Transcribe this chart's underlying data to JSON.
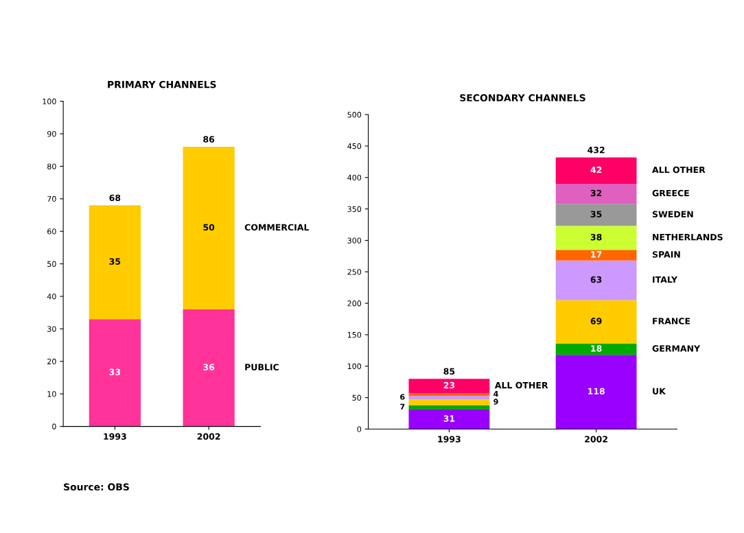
{
  "chart_data": [
    {
      "type": "bar",
      "title": "PRIMARY CHANNELS",
      "categories": [
        "1993",
        "2002"
      ],
      "stacked": true,
      "ylim": [
        0,
        100
      ],
      "yticks": [
        0,
        10,
        20,
        30,
        40,
        50,
        60,
        70,
        80,
        90,
        100
      ],
      "grid": false,
      "legend": false,
      "data_labels": true,
      "totals": [
        "68",
        "86"
      ],
      "series": [
        {
          "name": "PUBLIC",
          "color": "#ff3399",
          "values": [
            33,
            36
          ]
        },
        {
          "name": "COMMERCIAL",
          "color": "#ffcc00",
          "values": [
            35,
            50
          ]
        }
      ],
      "annotations": [
        "Source: OBS"
      ]
    },
    {
      "type": "bar",
      "title": "SECONDARY CHANNELS",
      "categories": [
        "1993",
        "2002"
      ],
      "stacked": true,
      "ylim": [
        0,
        500
      ],
      "yticks": [
        0,
        50,
        100,
        150,
        200,
        250,
        300,
        350,
        400,
        450,
        500
      ],
      "grid": false,
      "legend": false,
      "totals": [
        "85",
        "432"
      ],
      "series": [
        {
          "name": "UK",
          "color": "#9900ff",
          "values": [
            31,
            118
          ],
          "value_labels": [
            "31",
            "118"
          ]
        },
        {
          "name": "GERMANY",
          "color": "#00aa00",
          "values": [
            7,
            18
          ],
          "value_labels": [
            "7",
            "18"
          ]
        },
        {
          "name": "FRANCE",
          "color": "#ffcc00",
          "values": [
            9,
            69
          ],
          "value_labels": [
            "9",
            "69"
          ]
        },
        {
          "name": "ITALY",
          "color": "#cc99ff",
          "values": [
            6,
            63
          ],
          "value_labels": [
            "6",
            "63"
          ]
        },
        {
          "name": "SPAIN",
          "color": "#ff6600",
          "values": [
            4,
            17
          ],
          "value_labels": [
            "4",
            "17"
          ]
        },
        {
          "name": "NETHERLANDS",
          "color": "#ccff33",
          "values": [
            null,
            38
          ],
          "value_labels": [
            null,
            "38"
          ]
        },
        {
          "name": "SWEDEN",
          "color": "#999999",
          "values": [
            null,
            35
          ],
          "value_labels": [
            null,
            "35"
          ]
        },
        {
          "name": "GREECE",
          "color": "#e060c0",
          "values": [
            null,
            32
          ],
          "value_labels": [
            null,
            "32"
          ]
        },
        {
          "name": "ALL OTHER",
          "color": "#ff0066",
          "values": [
            23,
            42
          ],
          "value_labels": [
            "23",
            "42"
          ]
        }
      ],
      "annotations": [
        "ALL OTHER"
      ]
    }
  ]
}
